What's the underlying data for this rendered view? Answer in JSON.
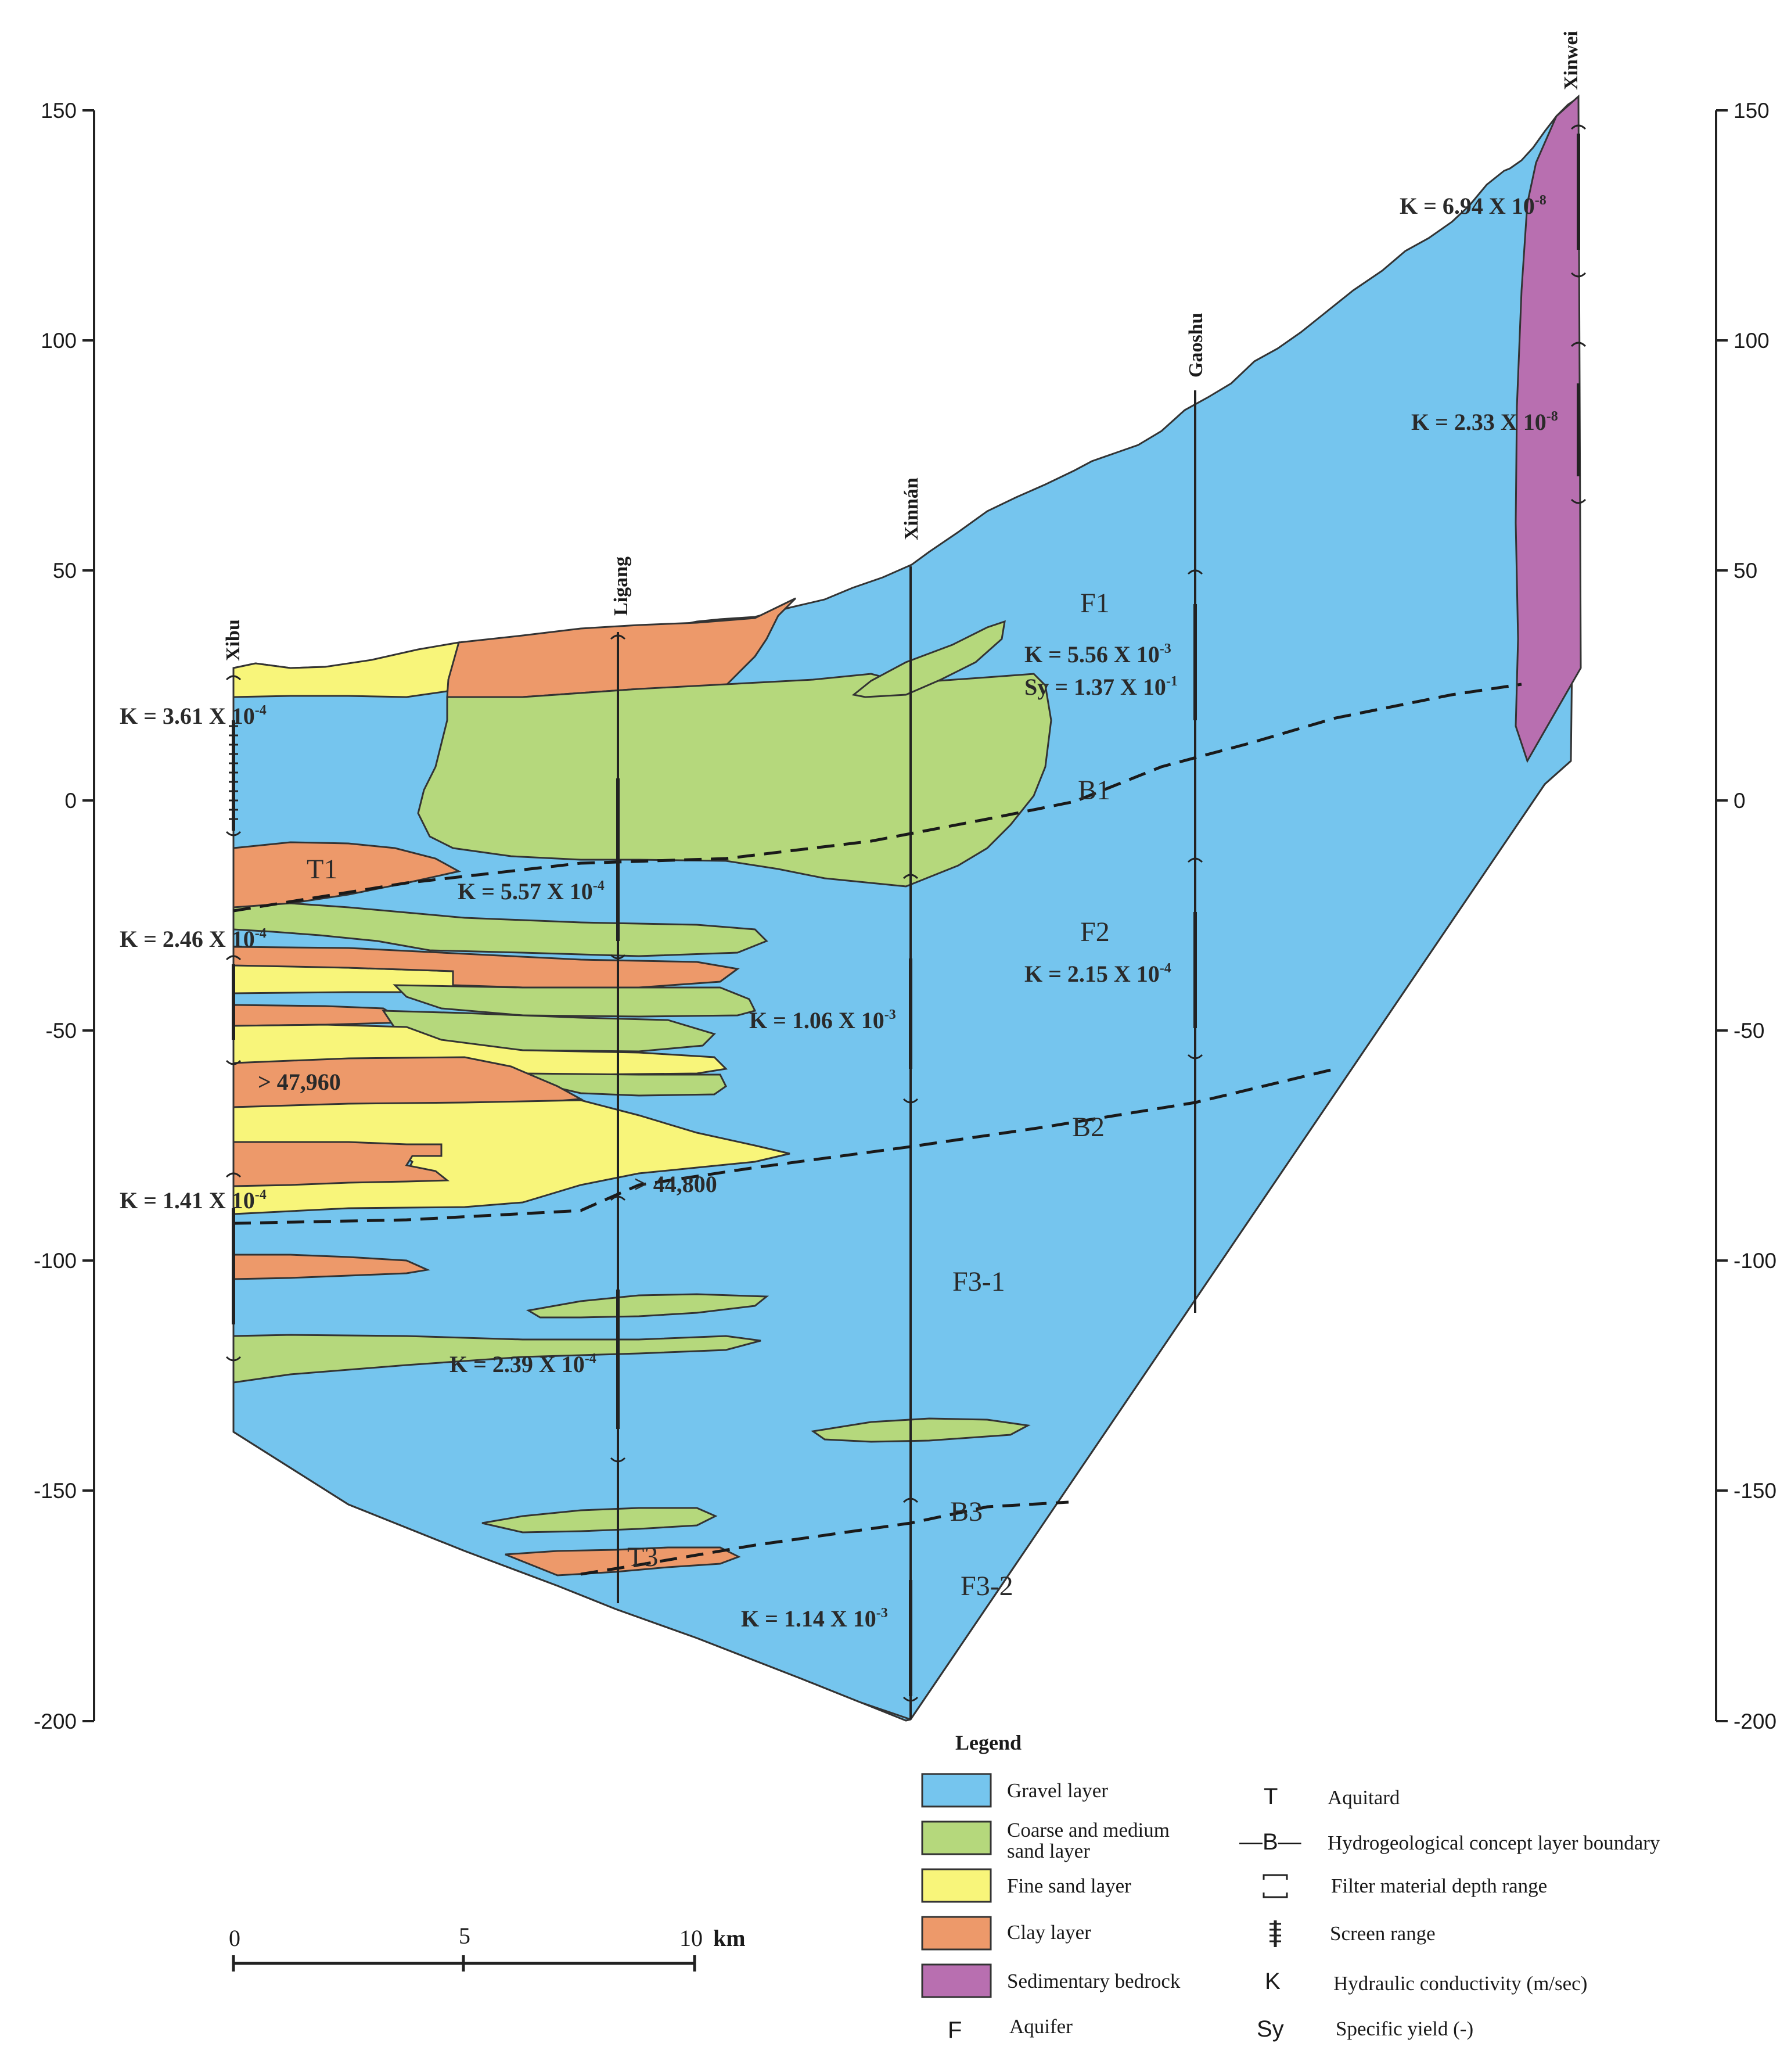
{
  "axes": {
    "left_ticks": [
      "150",
      "100",
      "50",
      "0",
      "-50",
      "-100",
      "-150",
      "-200"
    ],
    "right_ticks": [
      "150",
      "100",
      "50",
      "0",
      "-50",
      "-100",
      "-150",
      "-200"
    ]
  },
  "wells": {
    "xibu": "Xibu",
    "ligang": "Ligang",
    "xinnan": "Xinnán",
    "gaoshu": "Gaoshu",
    "xinwei": "Xinwei"
  },
  "k_labels": {
    "xinwei_upper": "K = 6.94 X 10",
    "xinwei_upper_exp": "-8",
    "xinwei_lower": "K = 2.33 X 10",
    "xinwei_lower_exp": "-8",
    "f1_k": "K = 5.56 X 10",
    "f1_k_exp": "-3",
    "f1_sy": "Sy = 1.37 X 10",
    "f1_sy_exp": "-1",
    "xibu_top": "K = 3.61 X 10",
    "xibu_top_exp": "-4",
    "t1_right": "K = 5.57 X 10",
    "t1_right_exp": "-4",
    "xibu_mid": "K = 2.46 X 10",
    "xibu_mid_exp": "-4",
    "f2_k": "K = 2.15 X 10",
    "f2_k_exp": "-4",
    "xinnan_mid": "K = 1.06 X 10",
    "xinnan_mid_exp": "-3",
    "xibu_low": "K = 1.41 X 10",
    "xibu_low_exp": "-4",
    "ligang_low": "K = 2.39 X 10",
    "ligang_low_exp": "-4",
    "xinnan_bottom": "K = 1.14 X 10",
    "xinnan_bottom_exp": "-3",
    "clay_depth_1": "> 47,960",
    "clay_depth_2": "> 44,800"
  },
  "zones": {
    "f1": "F1",
    "b1": "B1",
    "t1": "T1",
    "f2": "F2",
    "b2": "B2",
    "f3_1": "F3-1",
    "b3": "B3",
    "t3": "T3",
    "f3_2": "F3-2"
  },
  "scale_bar": {
    "labels": [
      "0",
      "5",
      "10"
    ],
    "unit": "km"
  },
  "legend": {
    "title": "Legend",
    "swatches": [
      {
        "label": "Gravel layer",
        "color": "#75c5ee"
      },
      {
        "label": "Coarse and medium",
        "label2": "sand layer",
        "color": "#b5d87c"
      },
      {
        "label": "Fine sand layer",
        "color": "#f8f57a"
      },
      {
        "label": "Clay layer",
        "color": "#ed996a"
      },
      {
        "label": "Sedimentary bedrock",
        "color": "#b86fb0"
      }
    ],
    "aquifer_symbol": "F",
    "aquifer_label": "Aquifer",
    "symbols": [
      {
        "sym": "T",
        "label": "Aquitard"
      },
      {
        "sym": "—B—",
        "label": "Hydrogeological concept layer boundary"
      },
      {
        "sym": "",
        "label": "Filter material depth range"
      },
      {
        "sym": "",
        "label": "Screen range"
      },
      {
        "sym": "K",
        "label": "Hydraulic conductivity (m/sec)"
      },
      {
        "sym": "Sy",
        "label": "Specific yield (-)"
      }
    ]
  }
}
